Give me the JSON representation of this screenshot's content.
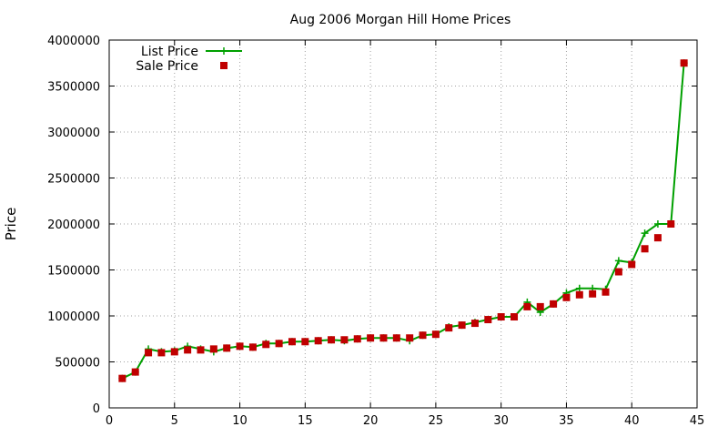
{
  "chart_data": {
    "type": "line",
    "title": "Aug 2006 Morgan Hill Home Prices",
    "xlabel": "",
    "ylabel": "Price",
    "xlim": [
      0,
      45
    ],
    "ylim": [
      0,
      4000000
    ],
    "x_ticks": [
      0,
      5,
      10,
      15,
      20,
      25,
      30,
      35,
      40,
      45
    ],
    "y_ticks": [
      0,
      500000,
      1000000,
      1500000,
      2000000,
      2500000,
      3000000,
      3500000,
      4000000
    ],
    "x_tick_labels": [
      "0",
      "5",
      "10",
      "15",
      "20",
      "25",
      "30",
      "35",
      "40",
      "45"
    ],
    "y_tick_labels": [
      "0",
      "500000",
      "1000000",
      "1500000",
      "2000000",
      "2500000",
      "3000000",
      "3500000",
      "4000000"
    ],
    "grid": true,
    "legend_position": "top-left",
    "series": [
      {
        "name": "List Price",
        "style": "linespoints",
        "marker": "plus",
        "color": "#00a000",
        "x": [
          1,
          2,
          3,
          4,
          5,
          6,
          7,
          8,
          9,
          10,
          11,
          12,
          13,
          14,
          15,
          16,
          17,
          18,
          19,
          20,
          21,
          22,
          23,
          24,
          25,
          26,
          27,
          28,
          29,
          30,
          31,
          32,
          33,
          34,
          35,
          36,
          37,
          38,
          39,
          40,
          41,
          42,
          43,
          44
        ],
        "values": [
          320000,
          390000,
          640000,
          610000,
          620000,
          670000,
          640000,
          610000,
          650000,
          670000,
          660000,
          700000,
          700000,
          720000,
          720000,
          730000,
          740000,
          730000,
          750000,
          760000,
          760000,
          760000,
          730000,
          790000,
          800000,
          880000,
          900000,
          930000,
          960000,
          990000,
          990000,
          1150000,
          1040000,
          1130000,
          1250000,
          1300000,
          1300000,
          1290000,
          1600000,
          1580000,
          1900000,
          2000000,
          2000000,
          3750000
        ]
      },
      {
        "name": "Sale Price",
        "style": "points",
        "marker": "square",
        "color": "#c00000",
        "x": [
          1,
          2,
          3,
          4,
          5,
          6,
          7,
          8,
          9,
          10,
          11,
          12,
          13,
          14,
          15,
          16,
          17,
          18,
          19,
          20,
          21,
          22,
          23,
          24,
          25,
          26,
          27,
          28,
          29,
          30,
          31,
          32,
          33,
          34,
          35,
          36,
          37,
          38,
          39,
          40,
          41,
          42,
          43,
          44
        ],
        "values": [
          320000,
          390000,
          600000,
          600000,
          610000,
          630000,
          630000,
          640000,
          650000,
          670000,
          660000,
          690000,
          700000,
          720000,
          720000,
          730000,
          740000,
          740000,
          750000,
          760000,
          760000,
          760000,
          760000,
          790000,
          800000,
          870000,
          900000,
          920000,
          960000,
          990000,
          990000,
          1100000,
          1100000,
          1130000,
          1200000,
          1230000,
          1240000,
          1260000,
          1480000,
          1560000,
          1730000,
          1850000,
          2000000,
          3750000
        ]
      }
    ]
  }
}
